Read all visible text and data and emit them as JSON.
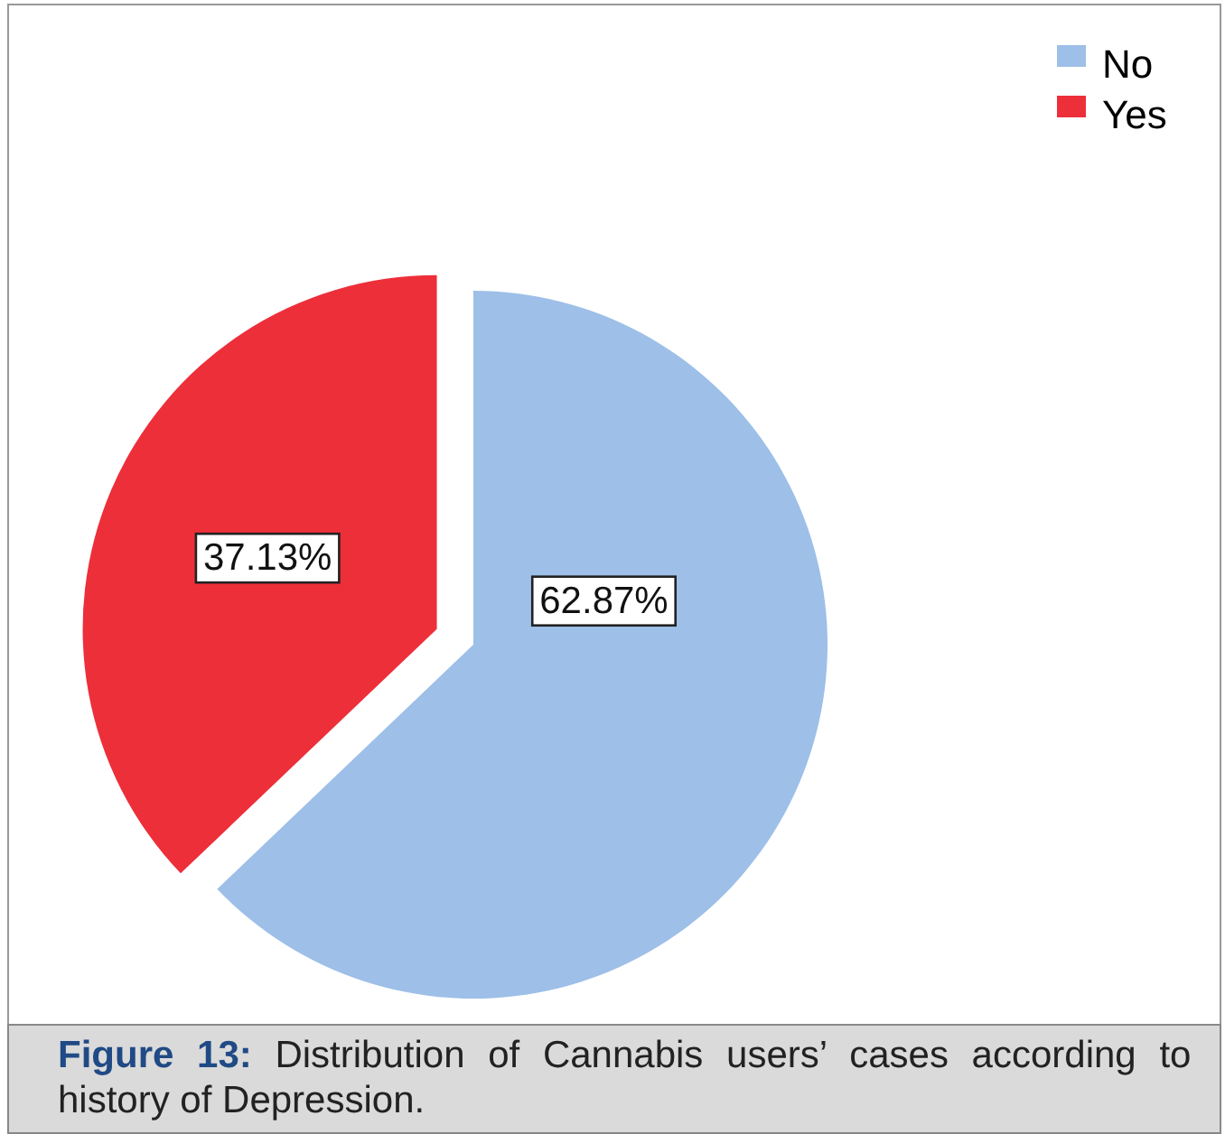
{
  "chart_data": {
    "type": "pie",
    "categories": [
      "No",
      "Yes"
    ],
    "values": [
      62.87,
      37.13
    ],
    "colors": [
      "#9dbfe8",
      "#ed2f3a"
    ],
    "value_labels": [
      "62.87%",
      "37.13%"
    ],
    "legend": "top right",
    "annotations": [
      "Figure 13: Distribution of Cannabis users’ cases according to history of Depression."
    ]
  }
}
